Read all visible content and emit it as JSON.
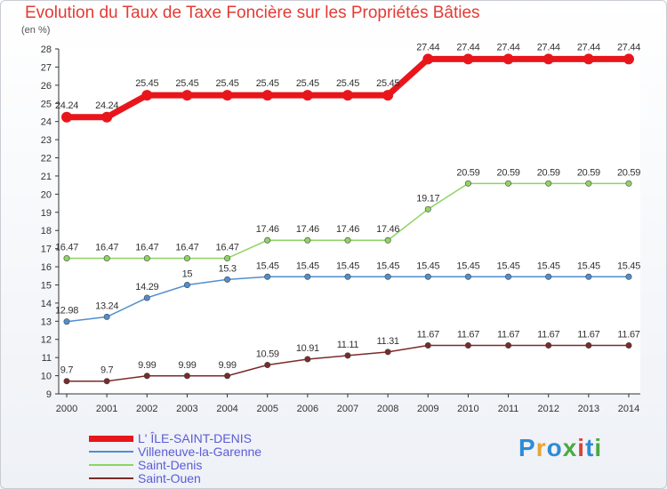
{
  "title": "Evolution du Taux de Taxe Foncière sur les Propriétés Bâties",
  "unit_label": "(en %)",
  "brand": {
    "text": "Proxiti",
    "colors": [
      "#2e8bd6",
      "#e9a531",
      "#2e8bd6",
      "#49a942",
      "#d9423a",
      "#2e8bd6",
      "#49a942"
    ]
  },
  "chart_data": {
    "type": "line",
    "title": "Evolution du Taux de Taxe Foncière sur les Propriétés Bâties",
    "ylabel": "(en %)",
    "xlabel": "",
    "ylim": [
      9,
      28
    ],
    "yticks": [
      9,
      10,
      11,
      12,
      13,
      14,
      15,
      16,
      17,
      18,
      19,
      20,
      21,
      22,
      23,
      24,
      25,
      26,
      27,
      28
    ],
    "x": [
      "2000",
      "2001",
      "2002",
      "2003",
      "2004",
      "2005",
      "2006",
      "2007",
      "2008",
      "2009",
      "2010",
      "2011",
      "2012",
      "2013",
      "2014"
    ],
    "grid": false,
    "legend_position": "bottom-left",
    "series": [
      {
        "name": "L' ÎLE-SAINT-DENIS",
        "color": "#e8161b",
        "values": [
          24.24,
          24.24,
          25.45,
          25.45,
          25.45,
          25.45,
          25.45,
          25.45,
          25.45,
          27.44,
          27.44,
          27.44,
          27.44,
          27.44,
          27.44
        ],
        "labels": [
          "24.24",
          "24.24",
          "25.45",
          "25.45",
          "25.45",
          "25.45",
          "25.45",
          "25.45",
          "25.45",
          "27.44",
          "27.44",
          "27.44",
          "27.44",
          "27.44",
          "27.44"
        ]
      },
      {
        "name": "Villeneuve-la-Garenne",
        "color": "#4f8fcf",
        "values": [
          12.98,
          13.24,
          14.29,
          15,
          15.3,
          15.45,
          15.45,
          15.45,
          15.45,
          15.45,
          15.45,
          15.45,
          15.45,
          15.45,
          15.45
        ],
        "labels": [
          "12.98",
          "13.24",
          "14.29",
          "15",
          "15.3",
          "15.45",
          "15.45",
          "15.45",
          "15.45",
          "15.45",
          "15.45",
          "15.45",
          "15.45",
          "15.45",
          "15.45"
        ]
      },
      {
        "name": "Saint-Denis",
        "color": "#8ed462",
        "values": [
          16.47,
          16.47,
          16.47,
          16.47,
          16.47,
          17.46,
          17.46,
          17.46,
          17.46,
          19.17,
          20.59,
          20.59,
          20.59,
          20.59,
          20.59
        ],
        "labels": [
          "16.47",
          "16.47",
          "16.47",
          "16.47",
          "16.47",
          "17.46",
          "17.46",
          "17.46",
          "17.46",
          "19.17",
          "20.59",
          "20.59",
          "20.59",
          "20.59",
          "20.59"
        ]
      },
      {
        "name": "Saint-Ouen",
        "color": "#7b2a2a",
        "values": [
          9.7,
          9.7,
          9.99,
          9.99,
          9.99,
          10.59,
          10.91,
          11.11,
          11.31,
          11.67,
          11.67,
          11.67,
          11.67,
          11.67,
          11.67
        ],
        "labels": [
          "9.7",
          "9.7",
          "9.99",
          "9.99",
          "9.99",
          "10.59",
          "10.91",
          "11.11",
          "11.31",
          "11.67",
          "11.67",
          "11.67",
          "11.67",
          "11.67",
          "11.67"
        ]
      }
    ]
  }
}
